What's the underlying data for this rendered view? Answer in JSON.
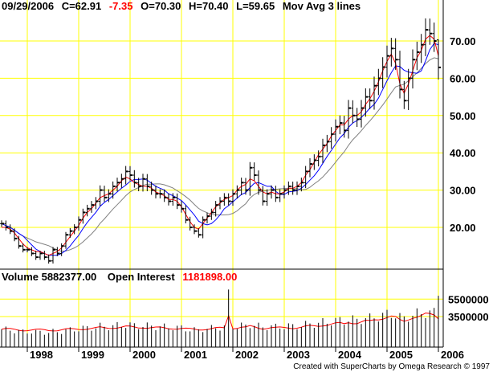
{
  "header": {
    "date": "09/29/2006",
    "close": "C=62.91",
    "change": "-7.35",
    "open": "O=70.30",
    "high": "H=70.40",
    "low": "L=59.65",
    "indicator": "Mov Avg 3 lines"
  },
  "volume_header": {
    "volume": "Volume  5882377.00",
    "oi_label": "Open Interest",
    "oi_value": "1181898.00"
  },
  "credit": "Created with SuperCharts by Omega Research © 1997",
  "colors": {
    "grid": "#ffff00",
    "price_bar": "#000000",
    "ma_fast": "#ff0000",
    "ma_mid": "#0000ff",
    "ma_slow": "#808080",
    "open_interest": "#ff0000",
    "change_text": "#ff0000"
  },
  "chart_data": [
    {
      "type": "bar",
      "subtype": "ohlc-monthly",
      "x_ticks": [
        "1998",
        "1999",
        "2000",
        "2001",
        "2002",
        "2003",
        "2004",
        "2005",
        "2006"
      ],
      "y_ticks": [
        "20.00",
        "30.00",
        "40.00",
        "50.00",
        "60.00",
        "70.00"
      ],
      "ylim": [
        9,
        81
      ],
      "grid": true,
      "start": [
        1997,
        7
      ],
      "close": [
        21,
        20,
        19,
        17,
        15,
        14,
        14,
        13,
        12,
        13,
        12,
        11,
        14,
        13,
        15,
        18,
        19,
        20,
        22,
        24,
        25,
        26,
        27,
        30,
        28,
        29,
        31,
        32,
        33,
        35,
        34,
        32,
        31,
        33,
        31,
        30,
        29,
        29,
        28,
        27,
        28,
        26,
        25,
        22,
        20,
        19,
        18,
        22,
        23,
        24,
        26,
        27,
        28,
        27,
        29,
        30,
        32,
        30,
        36,
        34,
        30,
        27,
        29,
        30,
        28,
        29,
        30,
        31,
        30,
        31,
        32,
        35,
        37,
        38,
        39,
        42,
        43,
        45,
        47,
        48,
        46,
        52,
        50,
        49,
        52,
        55,
        54,
        58,
        60,
        63,
        66,
        68,
        65,
        57,
        54,
        60,
        65,
        67,
        69,
        73,
        72,
        70,
        62.91
      ],
      "ma_fast": [
        20,
        20,
        19.5,
        18.5,
        17,
        15.5,
        14.5,
        14,
        13.5,
        13.5,
        13,
        12.5,
        13,
        13.5,
        14.5,
        16,
        17.5,
        19,
        20.5,
        22.5,
        24,
        25,
        26.5,
        28,
        28.5,
        29,
        30,
        31,
        32.5,
        33.5,
        33,
        32,
        31.5,
        31,
        31,
        30.5,
        29.5,
        29,
        28.5,
        27.5,
        27.5,
        27,
        25.5,
        23.5,
        21.5,
        20,
        19.5,
        21,
        22.5,
        24,
        25.5,
        26.5,
        27.5,
        28,
        28.5,
        30,
        31,
        31.5,
        33,
        32.5,
        31,
        29.5,
        29,
        29.5,
        29,
        29,
        29.5,
        30.5,
        30.5,
        31,
        32,
        34,
        35.5,
        37.5,
        39.5,
        41,
        42.5,
        44.5,
        46,
        47.5,
        47.5,
        49,
        50,
        50,
        51,
        53,
        54.5,
        56.5,
        59,
        62,
        64.5,
        66.5,
        64,
        58.5,
        56,
        58.5,
        62,
        65.5,
        67.5,
        70.5,
        71.5,
        70.5,
        66
      ]
    },
    {
      "type": "bar",
      "subtype": "volume-open-interest",
      "y_ticks": [
        "3500000",
        "5500000"
      ],
      "ylim": [
        0,
        7000000
      ],
      "last_volume": 5882377,
      "last_open_interest": 1181898
    }
  ]
}
